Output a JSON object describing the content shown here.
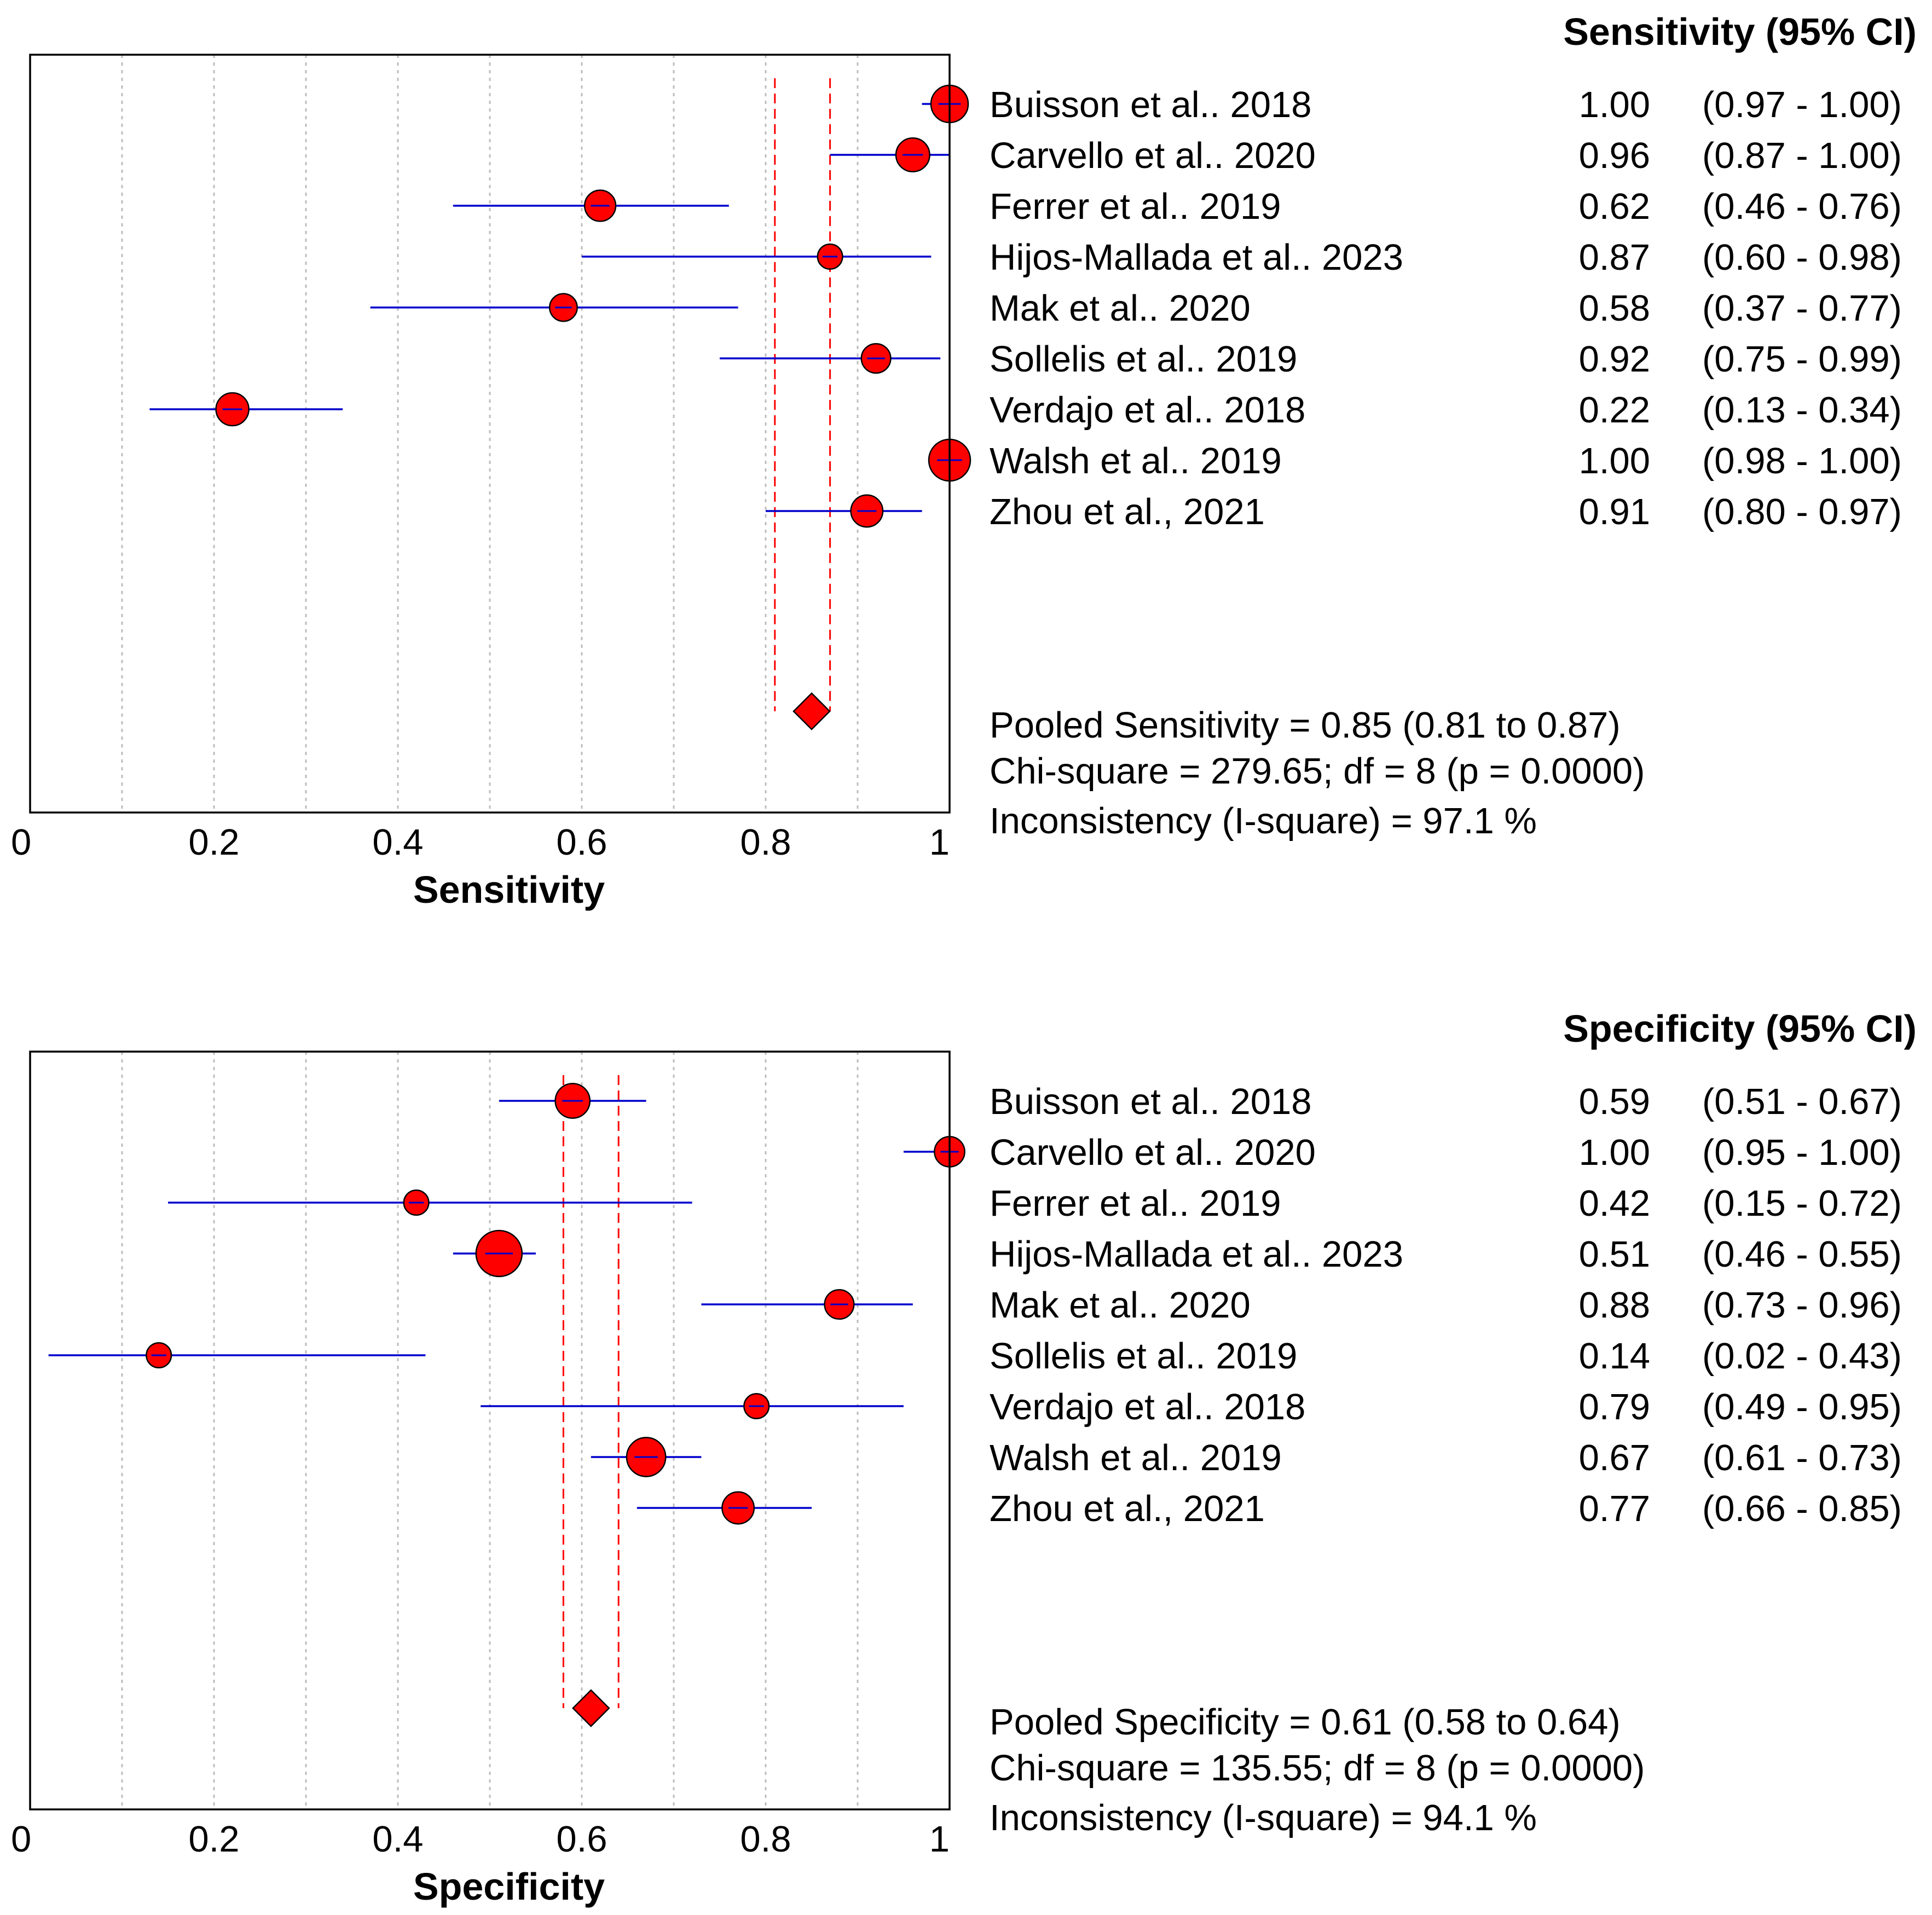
{
  "colors": {
    "point_fill": "#ff0000",
    "point_stroke": "#000000",
    "ci_line": "#0000cc",
    "pooled_line": "#ff0000",
    "grid": "#bdbdbd",
    "frame": "#000000",
    "background": "#ffffff"
  },
  "chart_data": [
    {
      "type": "forest",
      "name": "sensitivity",
      "column_header": "Sensitivity (95% CI)",
      "xlabel": "Sensitivity",
      "xlim": [
        0,
        1
      ],
      "ticks": [
        {
          "value": 0,
          "label": "0"
        },
        {
          "value": 0.2,
          "label": "0.2"
        },
        {
          "value": 0.4,
          "label": "0.4"
        },
        {
          "value": 0.6,
          "label": "0.6"
        },
        {
          "value": 0.8,
          "label": "0.8"
        },
        {
          "value": 1,
          "label": "1"
        }
      ],
      "studies": [
        {
          "study": "Buisson et al.. 2018",
          "estimate": 1.0,
          "lower": 0.97,
          "upper": 1.0,
          "value_label": "1.00",
          "ci_label": "(0.97 - 1.00)",
          "weight": 1.0
        },
        {
          "study": "Carvello et al.. 2020",
          "estimate": 0.96,
          "lower": 0.87,
          "upper": 1.0,
          "value_label": "0.96",
          "ci_label": "(0.87 - 1.00)",
          "weight": 0.8
        },
        {
          "study": "Ferrer et al.. 2019",
          "estimate": 0.62,
          "lower": 0.46,
          "upper": 0.76,
          "value_label": "0.62",
          "ci_label": "(0.46 - 0.76)",
          "weight": 0.65
        },
        {
          "study": "Hijos-Mallada et al.. 2023",
          "estimate": 0.87,
          "lower": 0.6,
          "upper": 0.98,
          "value_label": "0.87",
          "ci_label": "(0.60 - 0.98)",
          "weight": 0.3
        },
        {
          "study": "Mak et al.. 2020",
          "estimate": 0.58,
          "lower": 0.37,
          "upper": 0.77,
          "value_label": "0.58",
          "ci_label": "(0.37 - 0.77)",
          "weight": 0.45
        },
        {
          "study": "Sollelis et al.. 2019",
          "estimate": 0.92,
          "lower": 0.75,
          "upper": 0.99,
          "value_label": "0.92",
          "ci_label": "(0.75 - 0.99)",
          "weight": 0.55
        },
        {
          "study": "Verdajo et al.. 2018",
          "estimate": 0.22,
          "lower": 0.13,
          "upper": 0.34,
          "value_label": "0.22",
          "ci_label": "(0.13 - 0.34)",
          "weight": 0.75
        },
        {
          "study": "Walsh et al.. 2019",
          "estimate": 1.0,
          "lower": 0.98,
          "upper": 1.0,
          "value_label": "1.00",
          "ci_label": "(0.98 - 1.00)",
          "weight": 1.25
        },
        {
          "study": "Zhou et al., 2021",
          "estimate": 0.91,
          "lower": 0.8,
          "upper": 0.97,
          "value_label": "0.91",
          "ci_label": "(0.80 - 0.97)",
          "weight": 0.7
        }
      ],
      "pooled": {
        "estimate": 0.85,
        "lower": 0.81,
        "upper": 0.87
      },
      "summary": [
        "Pooled Sensitivity = 0.85 (0.81 to 0.87)",
        "Chi-square = 279.65; df =  8 (p = 0.0000)",
        "Inconsistency (I-square) = 97.1 %"
      ]
    },
    {
      "type": "forest",
      "name": "specificity",
      "column_header": "Specificity (95% CI)",
      "xlabel": "Specificity",
      "xlim": [
        0,
        1
      ],
      "ticks": [
        {
          "value": 0,
          "label": "0"
        },
        {
          "value": 0.2,
          "label": "0.2"
        },
        {
          "value": 0.4,
          "label": "0.4"
        },
        {
          "value": 0.6,
          "label": "0.6"
        },
        {
          "value": 0.8,
          "label": "0.8"
        },
        {
          "value": 1,
          "label": "1"
        }
      ],
      "studies": [
        {
          "study": "Buisson et al.. 2018",
          "estimate": 0.59,
          "lower": 0.51,
          "upper": 0.67,
          "value_label": "0.59",
          "ci_label": "(0.51 - 0.67)",
          "weight": 0.85
        },
        {
          "study": "Carvello et al.. 2020",
          "estimate": 1.0,
          "lower": 0.95,
          "upper": 1.0,
          "value_label": "1.00",
          "ci_label": "(0.95 - 1.00)",
          "weight": 0.6
        },
        {
          "study": "Ferrer et al.. 2019",
          "estimate": 0.42,
          "lower": 0.15,
          "upper": 0.72,
          "value_label": "0.42",
          "ci_label": "(0.15 - 0.72)",
          "weight": 0.3
        },
        {
          "study": "Hijos-Mallada et al.. 2023",
          "estimate": 0.51,
          "lower": 0.46,
          "upper": 0.55,
          "value_label": "0.51",
          "ci_label": "(0.46 - 0.55)",
          "weight": 1.5
        },
        {
          "study": "Mak et al.. 2020",
          "estimate": 0.88,
          "lower": 0.73,
          "upper": 0.96,
          "value_label": "0.88",
          "ci_label": "(0.73 - 0.96)",
          "weight": 0.55
        },
        {
          "study": "Sollelis et al.. 2019",
          "estimate": 0.14,
          "lower": 0.02,
          "upper": 0.43,
          "value_label": "0.14",
          "ci_label": "(0.02 - 0.43)",
          "weight": 0.3
        },
        {
          "study": "Verdajo et al.. 2018",
          "estimate": 0.79,
          "lower": 0.49,
          "upper": 0.95,
          "value_label": "0.79",
          "ci_label": "(0.49 - 0.95)",
          "weight": 0.3
        },
        {
          "study": "Walsh et al.. 2019",
          "estimate": 0.67,
          "lower": 0.61,
          "upper": 0.73,
          "value_label": "0.67",
          "ci_label": "(0.61 - 0.73)",
          "weight": 1.1
        },
        {
          "study": "Zhou et al., 2021",
          "estimate": 0.77,
          "lower": 0.66,
          "upper": 0.85,
          "value_label": "0.77",
          "ci_label": "(0.66 - 0.85)",
          "weight": 0.7
        }
      ],
      "pooled": {
        "estimate": 0.61,
        "lower": 0.58,
        "upper": 0.64
      },
      "summary": [
        "Pooled Specificity = 0.61 (0.58 to 0.64)",
        "Chi-square = 135.55; df =  8 (p = 0.0000)",
        "Inconsistency (I-square) = 94.1 %"
      ]
    }
  ]
}
